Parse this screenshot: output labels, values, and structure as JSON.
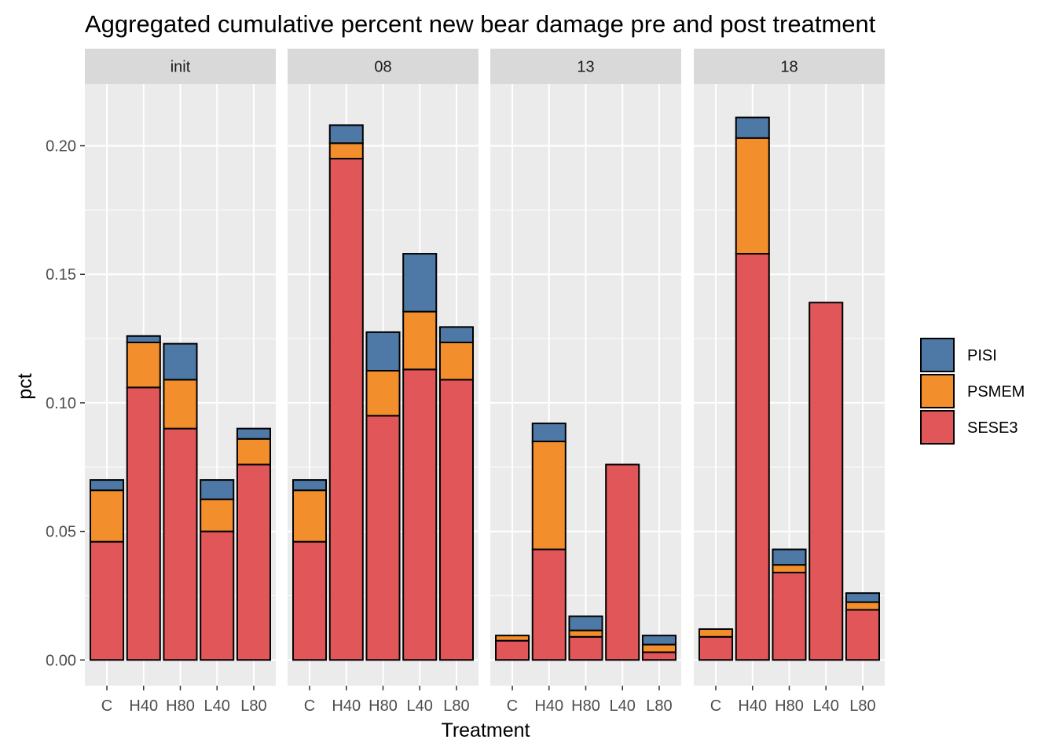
{
  "chart_data": {
    "type": "bar",
    "stacked": true,
    "title": "Aggregated cumulative percent new bear damage pre and post treatment",
    "xlabel": "Treatment",
    "ylabel": "pct",
    "ylim": [
      -0.01,
      0.224
    ],
    "yticks": [
      "0.00",
      "0.05",
      "0.10",
      "0.15",
      "0.20"
    ],
    "categories": [
      "C",
      "H40",
      "H80",
      "L40",
      "L80"
    ],
    "legend": {
      "position": "right",
      "entries": [
        "PISI",
        "PSMEM",
        "SESE3"
      ]
    },
    "colors": {
      "PISI": "#4e79a7",
      "PSMEM": "#f28e2b",
      "SESE3": "#e15759",
      "panel_bg": "#ebebeb",
      "strip_bg": "#d9d9d9",
      "grid": "#ffffff",
      "bar_outline": "#000000"
    },
    "panels": [
      {
        "label": "init",
        "series": [
          {
            "name": "SESE3",
            "values": [
              0.046,
              0.106,
              0.09,
              0.05,
              0.076
            ]
          },
          {
            "name": "PSMEM",
            "values": [
              0.02,
              0.0175,
              0.019,
              0.0125,
              0.01
            ]
          },
          {
            "name": "PISI",
            "values": [
              0.004,
              0.0025,
              0.014,
              0.0075,
              0.004
            ]
          }
        ]
      },
      {
        "label": "08",
        "series": [
          {
            "name": "SESE3",
            "values": [
              0.046,
              0.195,
              0.095,
              0.113,
              0.109
            ]
          },
          {
            "name": "PSMEM",
            "values": [
              0.02,
              0.006,
              0.0175,
              0.0225,
              0.0145
            ]
          },
          {
            "name": "PISI",
            "values": [
              0.004,
              0.007,
              0.015,
              0.0225,
              0.006
            ]
          }
        ]
      },
      {
        "label": "13",
        "series": [
          {
            "name": "SESE3",
            "values": [
              0.0075,
              0.043,
              0.009,
              0.076,
              0.003
            ]
          },
          {
            "name": "PSMEM",
            "values": [
              0.002,
              0.042,
              0.0025,
              0.0,
              0.003
            ]
          },
          {
            "name": "PISI",
            "values": [
              0.0,
              0.007,
              0.0055,
              0.0,
              0.0035
            ]
          }
        ]
      },
      {
        "label": "18",
        "series": [
          {
            "name": "SESE3",
            "values": [
              0.009,
              0.158,
              0.034,
              0.139,
              0.0195
            ]
          },
          {
            "name": "PSMEM",
            "values": [
              0.003,
              0.045,
              0.003,
              0.0,
              0.003
            ]
          },
          {
            "name": "PISI",
            "values": [
              0.0,
              0.008,
              0.006,
              0.0,
              0.0035
            ]
          }
        ]
      }
    ]
  }
}
